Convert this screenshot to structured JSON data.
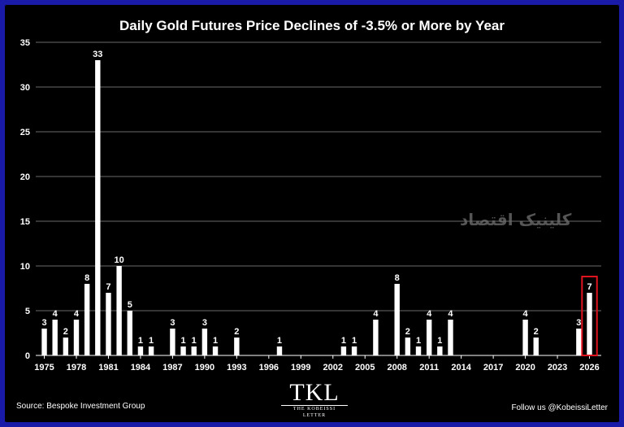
{
  "source": "Source: Bespoke Investment Group",
  "follow": "Follow us @KobeissiLetter",
  "watermark": "کلینیک اقتصاد",
  "logo": {
    "main": "TKL",
    "sub": "THE KOBEISSI LETTER"
  },
  "colors": {
    "background": "#000000",
    "border": "#1a1aa8",
    "bar": "#ffffff",
    "highlight": "#e0141e"
  },
  "chart_data": {
    "type": "bar",
    "title": "Daily Gold Futures Price Declines of -3.5% or More by Year",
    "xlabel": "",
    "ylabel": "",
    "ylim": [
      0,
      35
    ],
    "yticks": [
      0,
      5,
      10,
      15,
      20,
      25,
      30,
      35
    ],
    "xticks": [
      1975,
      1978,
      1981,
      1984,
      1987,
      1990,
      1993,
      1996,
      1999,
      2002,
      2005,
      2008,
      2011,
      2014,
      2017,
      2020,
      2023,
      2026
    ],
    "grid": true,
    "highlight_year": 2026,
    "x": [
      1975,
      1976,
      1977,
      1978,
      1979,
      1980,
      1981,
      1982,
      1983,
      1984,
      1985,
      1987,
      1988,
      1989,
      1990,
      1991,
      1993,
      1997,
      2003,
      2004,
      2006,
      2008,
      2009,
      2010,
      2011,
      2012,
      2013,
      2020,
      2021,
      2025,
      2026
    ],
    "values": [
      3,
      4,
      2,
      4,
      8,
      33,
      7,
      10,
      5,
      1,
      1,
      3,
      1,
      1,
      3,
      1,
      2,
      1,
      1,
      1,
      4,
      8,
      2,
      1,
      4,
      1,
      4,
      4,
      2,
      3,
      7
    ]
  }
}
